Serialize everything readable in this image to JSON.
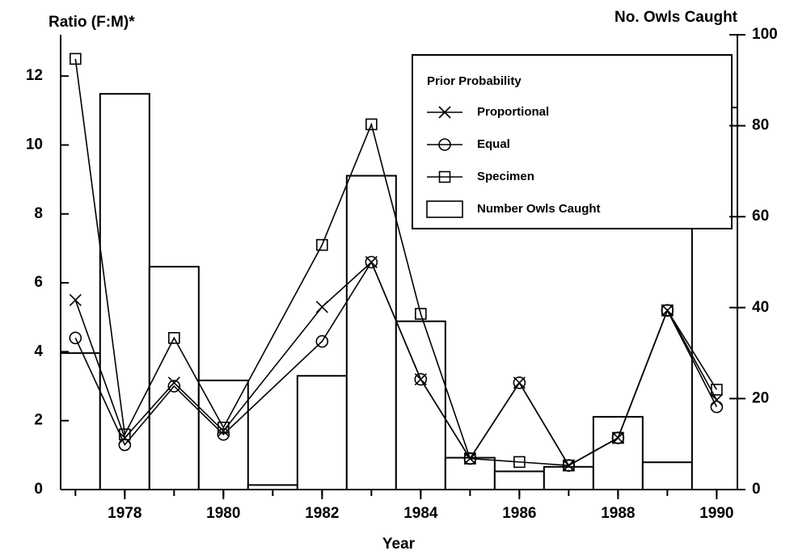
{
  "chart_data": {
    "type": "bar-line",
    "y_label": "Ratio (F:M)*",
    "y2_label": "No. Owls Caught",
    "x_label": "Year",
    "legend_title": "Prior Probability",
    "xlim": [
      1976.7,
      1990.42
    ],
    "xticks": [
      1978,
      1980,
      1982,
      1984,
      1986,
      1988,
      1990
    ],
    "xminor": [
      1977,
      1978,
      1979,
      1980,
      1981,
      1982,
      1983,
      1984,
      1985,
      1986,
      1987,
      1988,
      1989,
      1990
    ],
    "ylim": [
      0,
      13.2
    ],
    "yticks": [
      0,
      2,
      4,
      6,
      8,
      10,
      12
    ],
    "y2lim": [
      0,
      100
    ],
    "y2ticks": [
      0,
      20,
      40,
      60,
      80,
      100
    ],
    "series": [
      {
        "name": "Proportional",
        "marker": "x",
        "x": [
          1977,
          1978,
          1979,
          1980,
          1982,
          1983,
          1984,
          1985,
          1986,
          1987,
          1988,
          1989,
          1990
        ],
        "values": [
          5.5,
          1.5,
          3.1,
          1.7,
          5.3,
          6.6,
          3.2,
          0.9,
          3.1,
          0.7,
          1.5,
          5.2,
          2.6
        ]
      },
      {
        "name": "Equal",
        "marker": "circle",
        "x": [
          1977,
          1978,
          1979,
          1980,
          1982,
          1983,
          1984,
          1985,
          1986,
          1987,
          1988,
          1989,
          1990
        ],
        "values": [
          4.4,
          1.3,
          3.0,
          1.6,
          4.3,
          6.6,
          3.2,
          0.9,
          3.1,
          0.7,
          1.5,
          5.2,
          2.4
        ]
      },
      {
        "name": "Specimen",
        "marker": "square",
        "x": [
          1977,
          1978,
          1979,
          1980,
          1982,
          1983,
          1984,
          1985,
          1986,
          1987,
          1988,
          1989,
          1990
        ],
        "values": [
          12.5,
          1.6,
          4.4,
          1.8,
          7.1,
          10.6,
          5.1,
          0.9,
          0.8,
          0.7,
          1.5,
          5.2,
          2.9
        ]
      },
      {
        "name": "Number Owls Caught",
        "marker": "bar",
        "axis": "y2",
        "x": [
          1977,
          1978,
          1979,
          1980,
          1981,
          1982,
          1983,
          1984,
          1985,
          1986,
          1987,
          1988,
          1989,
          1990
        ],
        "values": [
          30,
          87,
          49,
          24,
          1,
          25,
          69,
          37,
          7,
          4,
          5,
          16,
          6,
          84
        ]
      }
    ]
  }
}
